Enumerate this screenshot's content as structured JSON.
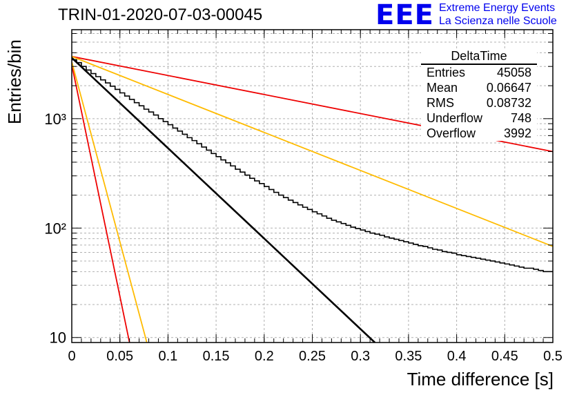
{
  "header": {
    "title": "TRIN-01-2020-07-03-00045",
    "logo_text": "EEE",
    "org_line1": "Extreme Energy Events",
    "org_line2": "La Scienza nelle Scuole"
  },
  "stats": {
    "title": "DeltaTime",
    "rows": [
      {
        "label": "Entries",
        "value": "45058"
      },
      {
        "label": "Mean",
        "value": "0.06647"
      },
      {
        "label": "RMS",
        "value": "0.08732"
      },
      {
        "label": "Underflow",
        "value": "748"
      },
      {
        "label": "Overflow",
        "value": "3992"
      }
    ]
  },
  "chart_data": {
    "type": "histogram",
    "xlabel": "Time difference [s]",
    "ylabel": "Entries/bin",
    "xlim": [
      0,
      0.5
    ],
    "ylim": [
      9,
      6500
    ],
    "yscale": "log",
    "grid": true,
    "legend": "top-right",
    "x_ticks": [
      "0",
      "0.05",
      "0.1",
      "0.15",
      "0.2",
      "0.25",
      "0.3",
      "0.35",
      "0.4",
      "0.45",
      "0.5"
    ],
    "y_ticks": [
      {
        "value": 10,
        "label": "10"
      },
      {
        "value": 100,
        "label": "10²"
      },
      {
        "value": 1000,
        "label": "10³"
      }
    ],
    "bin_width": 0.005,
    "histogram": [
      3450,
      3250,
      3000,
      2780,
      2580,
      2420,
      2260,
      2120,
      1980,
      1850,
      1720,
      1610,
      1500,
      1400,
      1310,
      1220,
      1150,
      1080,
      1000,
      940,
      880,
      820,
      770,
      720,
      670,
      630,
      590,
      550,
      515,
      480,
      450,
      420,
      395,
      370,
      345,
      325,
      305,
      285,
      270,
      255,
      240,
      225,
      212,
      200,
      190,
      180,
      171,
      163,
      155,
      148,
      141,
      135,
      129,
      123,
      118,
      114,
      110,
      106,
      102,
      99,
      96,
      93,
      90,
      88,
      86,
      83,
      81,
      79,
      77,
      75,
      73,
      71,
      69,
      68,
      66,
      64,
      63,
      61,
      60,
      59,
      57,
      56,
      55,
      54,
      53,
      52,
      51,
      50,
      49,
      48,
      47,
      46,
      45,
      44,
      43,
      43,
      42,
      41,
      40,
      40
    ],
    "series": [
      {
        "color": "#000000",
        "x": [
          0,
          0.315
        ],
        "y": [
          3600,
          9
        ]
      },
      {
        "color": "#ee0000",
        "x": [
          0,
          0.5
        ],
        "y": [
          3700,
          500
        ]
      },
      {
        "color": "#ffbb00",
        "x": [
          0,
          0.5
        ],
        "y": [
          3700,
          68
        ]
      },
      {
        "color": "#ee0000",
        "x": [
          0,
          0.06
        ],
        "y": [
          3100,
          9
        ]
      },
      {
        "color": "#ffbb00",
        "x": [
          0,
          0.078
        ],
        "y": [
          3300,
          9
        ]
      }
    ]
  }
}
